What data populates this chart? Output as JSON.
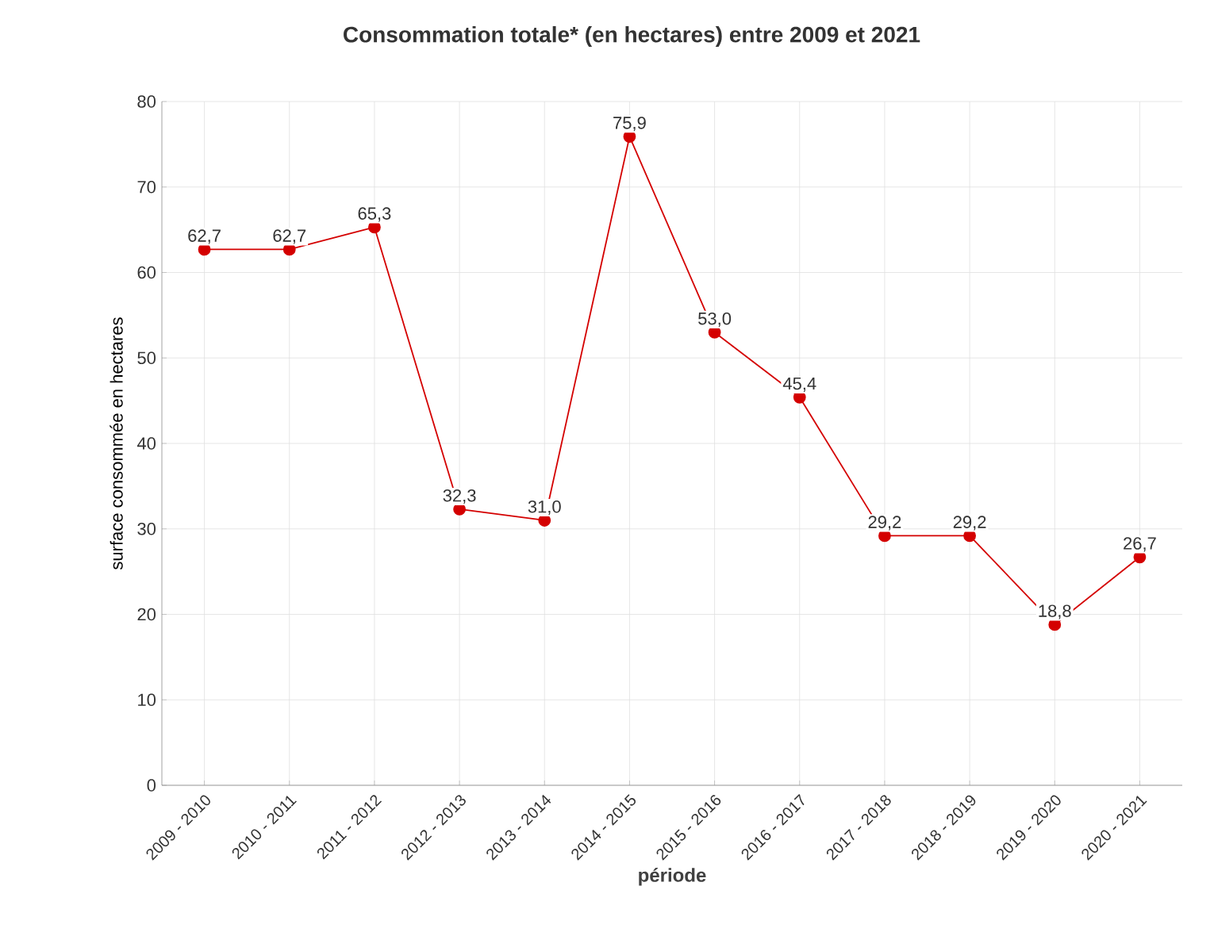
{
  "chart_data": {
    "type": "line",
    "title": "Consommation totale* (en hectares) entre 2009 et 2021",
    "xlabel": "période",
    "ylabel": "surface consommée en hectares",
    "categories": [
      "2009 - 2010",
      "2010 - 2011",
      "2011 - 2012",
      "2012 - 2013",
      "2013 - 2014",
      "2014 - 2015",
      "2015 - 2016",
      "2016 - 2017",
      "2017 - 2018",
      "2018 - 2019",
      "2019 - 2020",
      "2020 - 2021"
    ],
    "values": [
      62.7,
      62.7,
      65.3,
      32.3,
      31.0,
      75.9,
      53.0,
      45.4,
      29.2,
      29.2,
      18.8,
      26.7
    ],
    "value_labels": [
      "62,7",
      "62,7",
      "65,3",
      "32,3",
      "31,0",
      "75,9",
      "53,0",
      "45,4",
      "29,2",
      "29,2",
      "18,8",
      "26,7"
    ],
    "color": "#d40000",
    "marker": "circle",
    "line_style": "solid",
    "grid": true,
    "ylim": [
      0,
      80
    ],
    "yticks": [
      0,
      10,
      20,
      30,
      40,
      50,
      60,
      70,
      80
    ]
  }
}
